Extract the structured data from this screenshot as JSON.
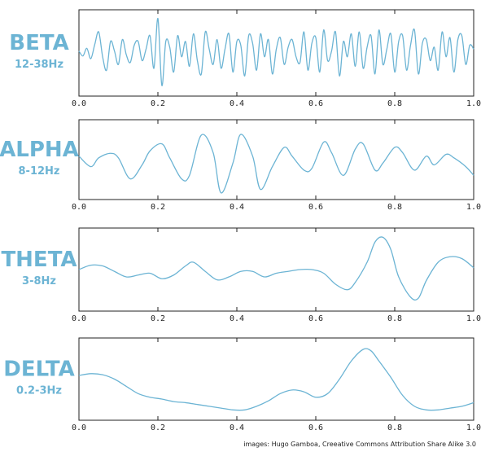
{
  "chart_data": [
    {
      "type": "line",
      "band": "BETA",
      "range": "12-38Hz",
      "xlim": [
        0,
        1
      ],
      "x_ticks": [
        "0.0",
        "0.2",
        "0.4",
        "0.6",
        "0.8",
        "1.0"
      ],
      "ylim": [
        -1,
        1
      ],
      "grid": false,
      "series": [
        {
          "x": [
            0,
            0.01,
            0.02,
            0.03,
            0.04,
            0.05,
            0.06,
            0.07,
            0.08,
            0.09,
            0.1,
            0.11,
            0.12,
            0.13,
            0.14,
            0.15,
            0.16,
            0.17,
            0.18,
            0.19,
            0.2,
            0.21,
            0.22,
            0.23,
            0.24,
            0.25,
            0.26,
            0.27,
            0.28,
            0.29,
            0.3,
            0.31,
            0.32,
            0.33,
            0.34,
            0.35,
            0.36,
            0.37,
            0.38,
            0.39,
            0.4,
            0.41,
            0.42,
            0.43,
            0.44,
            0.45,
            0.46,
            0.47,
            0.48,
            0.49,
            0.5,
            0.51,
            0.52,
            0.53,
            0.54,
            0.55,
            0.56,
            0.57,
            0.58,
            0.59,
            0.6,
            0.61,
            0.62,
            0.63,
            0.64,
            0.65,
            0.66,
            0.67,
            0.68,
            0.69,
            0.7,
            0.71,
            0.72,
            0.73,
            0.74,
            0.75,
            0.76,
            0.77,
            0.78,
            0.79,
            0.8,
            0.81,
            0.82,
            0.83,
            0.84,
            0.85,
            0.86,
            0.87,
            0.88,
            0.89,
            0.9,
            0.91,
            0.92,
            0.93,
            0.94,
            0.95,
            0.96,
            0.97,
            0.98,
            0.99,
            1.0
          ],
          "y": [
            0.05,
            -0.08,
            0.12,
            -0.15,
            0.22,
            0.55,
            -0.1,
            -0.45,
            0.3,
            0.05,
            -0.3,
            0.35,
            -0.05,
            -0.25,
            0.2,
            0.3,
            -0.2,
            0.1,
            0.45,
            -0.4,
            0.9,
            -0.85,
            0.3,
            0.15,
            -0.5,
            0.45,
            -0.1,
            0.3,
            -0.35,
            0.5,
            -0.2,
            -0.55,
            0.55,
            0.1,
            -0.3,
            0.35,
            -0.4,
            0.1,
            0.5,
            -0.5,
            0.3,
            0.2,
            -0.6,
            0.45,
            0.25,
            -0.45,
            0.5,
            -0.1,
            0.35,
            -0.55,
            0.1,
            0.4,
            -0.3,
            0.15,
            0.35,
            -0.1,
            -0.25,
            0.55,
            -0.45,
            0.25,
            0.4,
            -0.5,
            0.6,
            -0.2,
            0.05,
            0.55,
            -0.6,
            0.3,
            -0.1,
            0.5,
            -0.35,
            0.55,
            -0.4,
            0.15,
            0.45,
            -0.55,
            0.6,
            -0.3,
            0.1,
            0.5,
            -0.5,
            0.3,
            0.45,
            -0.45,
            0.2,
            0.6,
            -0.55,
            0.25,
            0.35,
            -0.2,
            0.15,
            -0.45,
            0.55,
            -0.1,
            0.4,
            -0.5,
            0.35,
            0.45,
            -0.3,
            0.2,
            0.1
          ]
        }
      ]
    },
    {
      "type": "line",
      "band": "ALPHA",
      "range": "8-12Hz",
      "xlim": [
        0,
        1
      ],
      "x_ticks": [
        "0.0",
        "0.2",
        "0.4",
        "0.6",
        "0.8",
        "1.0"
      ],
      "ylim": [
        -1,
        1
      ],
      "grid": false,
      "series": [
        {
          "x": [
            0,
            0.03,
            0.05,
            0.08,
            0.1,
            0.13,
            0.16,
            0.18,
            0.21,
            0.23,
            0.26,
            0.28,
            0.31,
            0.34,
            0.36,
            0.39,
            0.41,
            0.44,
            0.46,
            0.49,
            0.52,
            0.54,
            0.57,
            0.59,
            0.62,
            0.64,
            0.67,
            0.7,
            0.72,
            0.75,
            0.77,
            0.8,
            0.82,
            0.85,
            0.88,
            0.9,
            0.93,
            0.95,
            0.98,
            1.0
          ],
          "y": [
            0.1,
            -0.2,
            0.05,
            0.18,
            0.05,
            -0.55,
            -0.15,
            0.25,
            0.45,
            0.05,
            -0.55,
            -0.45,
            0.7,
            0.2,
            -0.95,
            -0.1,
            0.72,
            0.1,
            -0.85,
            -0.2,
            0.35,
            0.1,
            -0.3,
            -0.25,
            0.5,
            0.2,
            -0.45,
            0.3,
            0.45,
            -0.3,
            -0.1,
            0.35,
            0.2,
            -0.3,
            0.1,
            -0.15,
            0.15,
            0.05,
            -0.2,
            -0.45
          ]
        }
      ]
    },
    {
      "type": "line",
      "band": "THETA",
      "range": "3-8Hz",
      "xlim": [
        0,
        1
      ],
      "x_ticks": [
        "0.0",
        "0.2",
        "0.4",
        "0.6",
        "0.8",
        "1.0"
      ],
      "ylim": [
        -1,
        1
      ],
      "grid": false,
      "series": [
        {
          "x": [
            0,
            0.03,
            0.06,
            0.09,
            0.12,
            0.15,
            0.18,
            0.21,
            0.24,
            0.27,
            0.29,
            0.32,
            0.35,
            0.38,
            0.41,
            0.44,
            0.47,
            0.5,
            0.53,
            0.56,
            0.59,
            0.62,
            0.65,
            0.68,
            0.7,
            0.73,
            0.75,
            0.77,
            0.79,
            0.81,
            0.84,
            0.86,
            0.88,
            0.91,
            0.94,
            0.97,
            1.0
          ],
          "y": [
            0.0,
            0.12,
            0.1,
            -0.05,
            -0.2,
            -0.15,
            -0.1,
            -0.25,
            -0.15,
            0.1,
            0.2,
            -0.05,
            -0.28,
            -0.2,
            -0.05,
            -0.05,
            -0.2,
            -0.1,
            -0.05,
            0.0,
            0.0,
            -0.1,
            -0.4,
            -0.55,
            -0.35,
            0.2,
            0.75,
            0.88,
            0.55,
            -0.2,
            -0.75,
            -0.78,
            -0.3,
            0.2,
            0.35,
            0.3,
            0.05
          ]
        }
      ]
    },
    {
      "type": "line",
      "band": "DELTA",
      "range": "0.2-3Hz",
      "xlim": [
        0,
        1
      ],
      "x_ticks": [
        "0.0",
        "0.2",
        "0.4",
        "0.6",
        "0.8",
        "1.0"
      ],
      "ylim": [
        -1,
        1
      ],
      "grid": false,
      "series": [
        {
          "x": [
            0,
            0.03,
            0.06,
            0.09,
            0.12,
            0.15,
            0.18,
            0.21,
            0.24,
            0.27,
            0.3,
            0.33,
            0.36,
            0.39,
            0.42,
            0.45,
            0.48,
            0.51,
            0.54,
            0.57,
            0.6,
            0.63,
            0.66,
            0.69,
            0.72,
            0.74,
            0.76,
            0.79,
            0.82,
            0.85,
            0.88,
            0.91,
            0.94,
            0.97,
            1.0
          ],
          "y": [
            0.1,
            0.15,
            0.12,
            0.0,
            -0.2,
            -0.4,
            -0.5,
            -0.55,
            -0.62,
            -0.65,
            -0.7,
            -0.75,
            -0.8,
            -0.85,
            -0.85,
            -0.75,
            -0.6,
            -0.4,
            -0.3,
            -0.35,
            -0.5,
            -0.4,
            0.0,
            0.5,
            0.82,
            0.78,
            0.5,
            0.05,
            -0.45,
            -0.75,
            -0.85,
            -0.85,
            -0.8,
            -0.75,
            -0.65
          ]
        }
      ]
    }
  ],
  "credit": "images: Hugo Gamboa, Creeative Commons Attribution Share Alike 3.0"
}
